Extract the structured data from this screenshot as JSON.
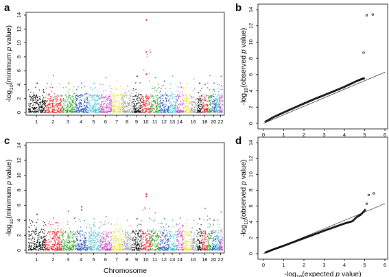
{
  "chart_data": [
    {
      "panel": "a",
      "type": "scatter",
      "title": "",
      "xlabel": "",
      "ylabel_parts": [
        "-log",
        "10",
        "(minimum ",
        "p",
        " value)"
      ],
      "ylim": [
        0,
        14
      ],
      "yticks": [
        0,
        2,
        4,
        6,
        8,
        10,
        12,
        14
      ],
      "xtick_labels": [
        "1",
        "2",
        "3",
        "4",
        "5",
        "6",
        "7",
        "8",
        "9",
        "10",
        "11",
        "12",
        "13",
        "14",
        "16",
        "18",
        "20",
        "22"
      ],
      "chromosomes": [
        {
          "chr": 1,
          "color": "#000000",
          "peak": 4.2
        },
        {
          "chr": 2,
          "color": "#e41a1c",
          "peak": 5.3
        },
        {
          "chr": 3,
          "color": "#2ca02c",
          "peak": 4.2
        },
        {
          "chr": 4,
          "color": "#1f4eb4",
          "peak": 4.2
        },
        {
          "chr": 5,
          "color": "#40c0d0",
          "peak": 4.2
        },
        {
          "chr": 6,
          "color": "#c040c0",
          "peak": 5.0
        },
        {
          "chr": 7,
          "color": "#e8e020",
          "peak": 4.5
        },
        {
          "chr": 8,
          "color": "#a0a0a0",
          "peak": 3.8
        },
        {
          "chr": 9,
          "color": "#000000",
          "peak": 5.2
        },
        {
          "chr": 10,
          "color": "#e41a1c",
          "peak": 13.3,
          "hits": [
            13.3,
            8.7,
            5.5
          ]
        },
        {
          "chr": 11,
          "color": "#2ca02c",
          "peak": 5.0
        },
        {
          "chr": 12,
          "color": "#1f4eb4",
          "peak": 4.5
        },
        {
          "chr": 13,
          "color": "#40c0d0",
          "peak": 5.2
        },
        {
          "chr": 14,
          "color": "#c040c0",
          "peak": 4.2
        },
        {
          "chr": 15,
          "color": "#e8e020",
          "peak": 4.2
        },
        {
          "chr": 16,
          "color": "#a0a0a0",
          "peak": 4.8
        },
        {
          "chr": 17,
          "color": "#000000",
          "peak": 4.2
        },
        {
          "chr": 18,
          "color": "#e41a1c",
          "peak": 4.0
        },
        {
          "chr": 19,
          "color": "#2ca02c",
          "peak": 5.3
        },
        {
          "chr": 20,
          "color": "#1f4eb4",
          "peak": 4.2
        },
        {
          "chr": 21,
          "color": "#40c0d0",
          "peak": 4.0
        },
        {
          "chr": 22,
          "color": "#c040c0",
          "peak": 5.2
        }
      ]
    },
    {
      "panel": "b",
      "type": "scatter",
      "title": "",
      "xlabel": "",
      "ylabel_parts": [
        "-log",
        "10",
        "(observed ",
        "p",
        " value)"
      ],
      "xlim": [
        0,
        6
      ],
      "ylim": [
        0,
        14
      ],
      "xticks": [
        0,
        1,
        2,
        3,
        4,
        5,
        6
      ],
      "yticks": [
        0,
        2,
        4,
        6,
        8,
        10,
        12,
        14
      ],
      "reference_line": {
        "from": [
          0,
          0
        ],
        "to": [
          6,
          6.3
        ]
      },
      "points": [
        [
          0.1,
          0.22
        ],
        [
          0.5,
          0.78
        ],
        [
          1.0,
          1.35
        ],
        [
          1.5,
          1.9
        ],
        [
          2.0,
          2.45
        ],
        [
          2.5,
          2.98
        ],
        [
          3.0,
          3.48
        ],
        [
          3.5,
          3.98
        ],
        [
          4.0,
          4.5
        ],
        [
          4.3,
          4.85
        ],
        [
          4.6,
          5.2
        ],
        [
          4.8,
          5.4
        ],
        [
          4.9,
          5.5
        ],
        [
          5.0,
          5.55
        ]
      ],
      "outliers": [
        [
          4.95,
          8.7
        ],
        [
          5.1,
          13.3
        ],
        [
          5.4,
          13.4
        ]
      ]
    },
    {
      "panel": "c",
      "type": "scatter",
      "title": "",
      "xlabel": "Chromosome",
      "ylabel_parts": [
        "-log",
        "10",
        "(minimum ",
        "p",
        " value)"
      ],
      "ylim": [
        0,
        14
      ],
      "yticks": [
        0,
        2,
        4,
        6,
        8,
        10,
        12,
        14
      ],
      "xtick_labels": [
        "1",
        "2",
        "3",
        "4",
        "5",
        "6",
        "7",
        "8",
        "9",
        "10",
        "11",
        "12",
        "13",
        "14",
        "16",
        "18",
        "20",
        "22"
      ],
      "chromosomes": [
        {
          "chr": 1,
          "color": "#000000",
          "peak": 4.8
        },
        {
          "chr": 2,
          "color": "#e41a1c",
          "peak": 4.3
        },
        {
          "chr": 3,
          "color": "#2ca02c",
          "peak": 5.2
        },
        {
          "chr": 4,
          "color": "#1f4eb4",
          "peak": 5.8,
          "hits": [
            5.8,
            5.4
          ]
        },
        {
          "chr": 5,
          "color": "#40c0d0",
          "peak": 4.2
        },
        {
          "chr": 6,
          "color": "#c040c0",
          "peak": 4.5
        },
        {
          "chr": 7,
          "color": "#e8e020",
          "peak": 4.2
        },
        {
          "chr": 8,
          "color": "#a0a0a0",
          "peak": 4.0
        },
        {
          "chr": 9,
          "color": "#000000",
          "peak": 4.2
        },
        {
          "chr": 10,
          "color": "#e41a1c",
          "peak": 7.5,
          "hits": [
            7.5,
            7.2
          ]
        },
        {
          "chr": 11,
          "color": "#2ca02c",
          "peak": 5.0
        },
        {
          "chr": 12,
          "color": "#1f4eb4",
          "peak": 4.2
        },
        {
          "chr": 13,
          "color": "#40c0d0",
          "peak": 4.0
        },
        {
          "chr": 14,
          "color": "#c040c0",
          "peak": 4.3
        },
        {
          "chr": 15,
          "color": "#e8e020",
          "peak": 4.0
        },
        {
          "chr": 16,
          "color": "#a0a0a0",
          "peak": 4.0
        },
        {
          "chr": 17,
          "color": "#000000",
          "peak": 4.2
        },
        {
          "chr": 18,
          "color": "#e41a1c",
          "peak": 5.6
        },
        {
          "chr": 19,
          "color": "#2ca02c",
          "peak": 4.2
        },
        {
          "chr": 20,
          "color": "#1f4eb4",
          "peak": 4.0
        },
        {
          "chr": 21,
          "color": "#40c0d0",
          "peak": 4.0
        },
        {
          "chr": 22,
          "color": "#c040c0",
          "peak": 5.1
        }
      ]
    },
    {
      "panel": "d",
      "type": "scatter",
      "title": "",
      "xlabel_parts": [
        "-log",
        "10",
        "(expected ",
        "p",
        " value)"
      ],
      "ylabel_parts": [
        "-log",
        "10",
        "(observed ",
        "p",
        " value)"
      ],
      "xlim": [
        0,
        6
      ],
      "ylim": [
        0,
        14
      ],
      "xticks": [
        0,
        1,
        2,
        3,
        4,
        5,
        6
      ],
      "yticks": [
        0,
        2,
        4,
        6,
        8,
        10,
        12,
        14
      ],
      "reference_line": {
        "from": [
          0,
          0
        ],
        "to": [
          6,
          6.3
        ]
      },
      "points": [
        [
          0.1,
          0.15
        ],
        [
          0.5,
          0.55
        ],
        [
          1.0,
          1.0
        ],
        [
          1.5,
          1.48
        ],
        [
          2.0,
          1.95
        ],
        [
          2.5,
          2.42
        ],
        [
          3.0,
          2.9
        ],
        [
          3.5,
          3.35
        ],
        [
          4.0,
          3.8
        ],
        [
          4.4,
          4.1
        ],
        [
          4.6,
          4.6
        ],
        [
          4.8,
          4.9
        ],
        [
          4.95,
          5.3
        ],
        [
          5.05,
          5.6
        ]
      ],
      "outliers": [
        [
          5.1,
          6.3
        ],
        [
          5.2,
          7.4
        ],
        [
          5.45,
          7.6
        ]
      ]
    }
  ]
}
